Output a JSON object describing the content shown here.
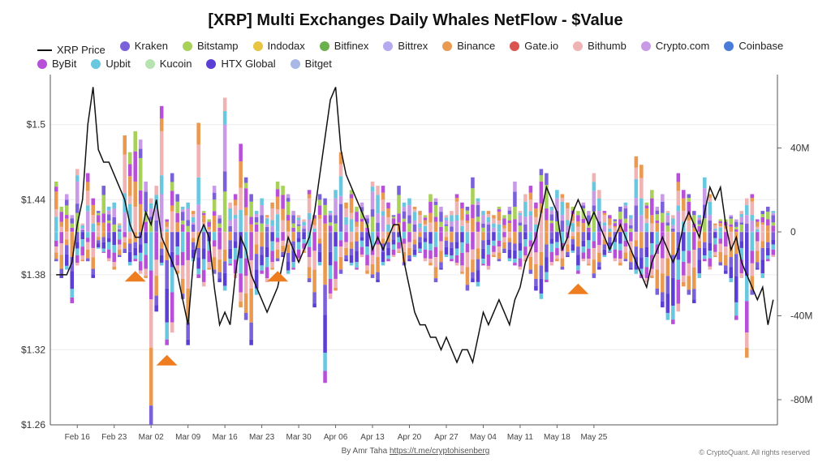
{
  "chart_data": {
    "type": "bar",
    "title": "[XRP] Multi Exchanges Daily Whales NetFlow - $Value",
    "legend": [
      {
        "name": "XRP Price",
        "color": "#111111",
        "kind": "line"
      },
      {
        "name": "Kraken",
        "color": "#7b61d9",
        "kind": "dot"
      },
      {
        "name": "Bitstamp",
        "color": "#a8d15a",
        "kind": "dot"
      },
      {
        "name": "Indodax",
        "color": "#e8c540",
        "kind": "dot"
      },
      {
        "name": "Bitfinex",
        "color": "#6ab04c",
        "kind": "dot"
      },
      {
        "name": "Bittrex",
        "color": "#b7a9f0",
        "kind": "dot"
      },
      {
        "name": "Binance",
        "color": "#ea9a50",
        "kind": "dot"
      },
      {
        "name": "Gate.io",
        "color": "#d9534f",
        "kind": "dot"
      },
      {
        "name": "Bithumb",
        "color": "#f0b3b3",
        "kind": "dot"
      },
      {
        "name": "Crypto.com",
        "color": "#c99ae6",
        "kind": "dot"
      },
      {
        "name": "Coinbase",
        "color": "#4a7bd9",
        "kind": "dot"
      },
      {
        "name": "ByBit",
        "color": "#b84fd8",
        "kind": "dot"
      },
      {
        "name": "Upbit",
        "color": "#6ac7e0",
        "kind": "dot"
      },
      {
        "name": "Kucoin",
        "color": "#b6e3b0",
        "kind": "dot"
      },
      {
        "name": "HTX Global",
        "color": "#5b3fd4",
        "kind": "dot"
      },
      {
        "name": "Bitget",
        "color": "#a7b8e6",
        "kind": "dot"
      }
    ],
    "x_ticks": [
      "Feb 16",
      "Feb 23",
      "Mar 02",
      "Mar 09",
      "Mar 16",
      "Mar 23",
      "Mar 30",
      "Apr 06",
      "Apr 13",
      "Apr 20",
      "Apr 27",
      "May 04",
      "May 11",
      "May 18",
      "May 25"
    ],
    "y_left_ticks": [
      "$1.26",
      "$1.32",
      "$1.38",
      "$1.44",
      "$1.5"
    ],
    "y_left_range": [
      1.26,
      1.54
    ],
    "y_right_ticks": [
      "-80M",
      "-40M",
      "0",
      "40M"
    ],
    "y_right_range": [
      -92000000,
      75000000
    ],
    "start_date": "2025-02-12",
    "netflow_pos_M": [
      24,
      12,
      18,
      8,
      30,
      4,
      28,
      16,
      10,
      22,
      12,
      14,
      4,
      46,
      38,
      48,
      44,
      24,
      16,
      22,
      60,
      6,
      28,
      18,
      12,
      14,
      10,
      52,
      10,
      6,
      22,
      8,
      64,
      14,
      18,
      42,
      26,
      18,
      10,
      16,
      8,
      14,
      24,
      22,
      18,
      10,
      8,
      6,
      20,
      8,
      18,
      16,
      10,
      20,
      38,
      14,
      20,
      12,
      14,
      8,
      24,
      22,
      22,
      14,
      8,
      22,
      14,
      16,
      12,
      10,
      8,
      18,
      16,
      12,
      8,
      10,
      18,
      14,
      12,
      26,
      16,
      10,
      10,
      8,
      12,
      8,
      12,
      24,
      10,
      18,
      22,
      14,
      30,
      28,
      12,
      20,
      18,
      14,
      12,
      10,
      14,
      10,
      28,
      20,
      10,
      8,
      6,
      12,
      14,
      8,
      36,
      32,
      14,
      20,
      12,
      18,
      10,
      8,
      28,
      20,
      18,
      10,
      8,
      26,
      18,
      4,
      6,
      6,
      8,
      6,
      10,
      16,
      18,
      6,
      10,
      12,
      10
    ],
    "netflow_neg_M": [
      -14,
      -22,
      -18,
      -34,
      -16,
      -14,
      -14,
      -22,
      -8,
      -10,
      -14,
      -18,
      -12,
      -10,
      -16,
      -14,
      -20,
      -22,
      -92,
      -38,
      -16,
      -54,
      -48,
      -20,
      -32,
      -54,
      -14,
      -22,
      -26,
      -18,
      -20,
      -24,
      -28,
      -16,
      -22,
      -36,
      -42,
      -54,
      -30,
      -20,
      -24,
      -18,
      -14,
      -12,
      -20,
      -18,
      -14,
      -10,
      -24,
      -36,
      -16,
      -72,
      -32,
      -28,
      -20,
      -14,
      -16,
      -18,
      -12,
      -20,
      -22,
      -24,
      -16,
      -14,
      -12,
      -10,
      -16,
      -14,
      -12,
      -10,
      -14,
      -16,
      -24,
      -18,
      -12,
      -14,
      -16,
      -20,
      -28,
      -24,
      -26,
      -16,
      -18,
      -12,
      -14,
      -10,
      -14,
      -16,
      -18,
      -14,
      -20,
      -28,
      -32,
      -24,
      -16,
      -14,
      -18,
      -12,
      -10,
      -20,
      -14,
      -16,
      -22,
      -18,
      -12,
      -10,
      -14,
      -16,
      -14,
      -18,
      -20,
      -22,
      -24,
      -22,
      -30,
      -36,
      -42,
      -44,
      -38,
      -26,
      -30,
      -34,
      -22,
      -14,
      -18,
      -12,
      -16,
      -20,
      -24,
      -42,
      -22,
      -60,
      -30,
      -18,
      -22,
      -14,
      -12
    ],
    "price": [
      1.38,
      1.38,
      1.38,
      1.39,
      1.42,
      1.44,
      1.5,
      1.53,
      1.48,
      1.47,
      1.47,
      1.46,
      1.45,
      1.44,
      1.42,
      1.41,
      1.41,
      1.43,
      1.42,
      1.44,
      1.41,
      1.4,
      1.39,
      1.38,
      1.36,
      1.34,
      1.39,
      1.41,
      1.42,
      1.41,
      1.37,
      1.34,
      1.35,
      1.34,
      1.38,
      1.41,
      1.4,
      1.38,
      1.37,
      1.36,
      1.35,
      1.36,
      1.37,
      1.39,
      1.41,
      1.4,
      1.39,
      1.4,
      1.41,
      1.43,
      1.46,
      1.49,
      1.52,
      1.53,
      1.48,
      1.46,
      1.45,
      1.44,
      1.43,
      1.42,
      1.4,
      1.41,
      1.4,
      1.41,
      1.42,
      1.42,
      1.39,
      1.37,
      1.35,
      1.34,
      1.34,
      1.33,
      1.33,
      1.32,
      1.33,
      1.32,
      1.31,
      1.32,
      1.32,
      1.31,
      1.33,
      1.35,
      1.34,
      1.35,
      1.36,
      1.35,
      1.34,
      1.36,
      1.37,
      1.39,
      1.4,
      1.41,
      1.43,
      1.45,
      1.44,
      1.43,
      1.4,
      1.41,
      1.43,
      1.44,
      1.43,
      1.42,
      1.43,
      1.42,
      1.41,
      1.4,
      1.41,
      1.42,
      1.41,
      1.4,
      1.39,
      1.38,
      1.37,
      1.39,
      1.4,
      1.41,
      1.4,
      1.39,
      1.4,
      1.42,
      1.43,
      1.42,
      1.41,
      1.43,
      1.45,
      1.44,
      1.45,
      1.42,
      1.4,
      1.41,
      1.39,
      1.38,
      1.37,
      1.36,
      1.37,
      1.34,
      1.36
    ],
    "arrow_dates": [
      "2025-02-27",
      "2025-03-05",
      "2025-03-26",
      "2025-05-22"
    ]
  },
  "credit": {
    "prefix": "By Amr Taha ",
    "link": "https://t.me/cryptohisenberg"
  },
  "copyright": "© CryptoQuant. All rights reserved"
}
